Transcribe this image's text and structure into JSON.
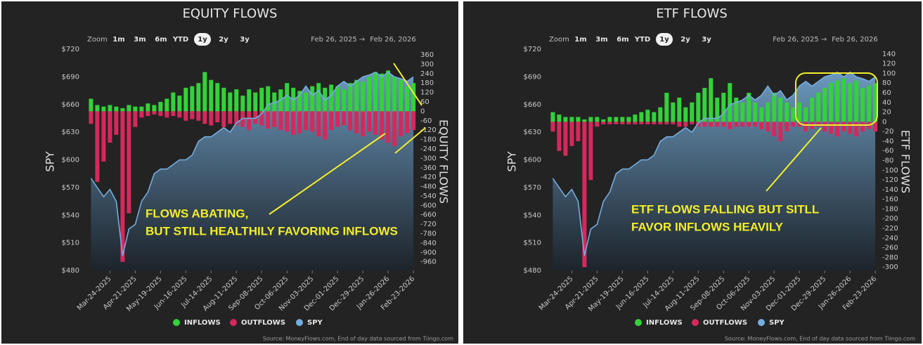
{
  "chart_data": [
    {
      "type": "combo",
      "title": "EQUITY FLOWS",
      "zoom_label": "Zoom",
      "zoom_options": [
        "1m",
        "3m",
        "6m",
        "YTD",
        "1y",
        "2y",
        "3y"
      ],
      "selected_zoom": "1y",
      "range_start": "Feb 26, 2025",
      "range_arrow": "→",
      "range_end": "Feb 26, 2026",
      "y_label": "SPY",
      "y2_label": "EQUITY FLOWS",
      "annotations": [
        "FLOWS ABATING,",
        "BUT STILL HEALTHILY FAVORING INFLOWS"
      ],
      "source": "Source: MoneyFlows.com, End of day data sourced from Tiingo.com",
      "xlim": [
        "Feb-26-2025",
        "Feb-26-2026"
      ],
      "xticks": [
        "Mar-24-2025",
        "Apr-21-2025",
        "May-19-2025",
        "Jun-16-2025",
        "Jul-14-2025",
        "Aug-11-2025",
        "Sep-08-2025",
        "Oct-06-2025",
        "Nov-03-2025",
        "Dec-01-2025",
        "Dec-29-2025",
        "Jan-26-2026",
        "Feb-23-2026"
      ],
      "x": [
        "Mar-03-2025",
        "Mar-10-2025",
        "Mar-17-2025",
        "Mar-24-2025",
        "Mar-31-2025",
        "Apr-07-2025",
        "Apr-14-2025",
        "Apr-21-2025",
        "Apr-28-2025",
        "May-05-2025",
        "May-12-2025",
        "May-19-2025",
        "May-26-2025",
        "Jun-02-2025",
        "Jun-09-2025",
        "Jun-16-2025",
        "Jun-23-2025",
        "Jun-30-2025",
        "Jul-07-2025",
        "Jul-14-2025",
        "Jul-21-2025",
        "Jul-28-2025",
        "Aug-04-2025",
        "Aug-11-2025",
        "Aug-18-2025",
        "Aug-25-2025",
        "Sep-01-2025",
        "Sep-08-2025",
        "Sep-15-2025",
        "Sep-22-2025",
        "Sep-29-2025",
        "Oct-06-2025",
        "Oct-13-2025",
        "Oct-20-2025",
        "Oct-27-2025",
        "Nov-03-2025",
        "Nov-10-2025",
        "Nov-17-2025",
        "Nov-24-2025",
        "Dec-01-2025",
        "Dec-08-2025",
        "Dec-15-2025",
        "Dec-22-2025",
        "Dec-29-2025",
        "Jan-05-2026",
        "Jan-12-2026",
        "Jan-19-2026",
        "Jan-26-2026",
        "Feb-02-2026",
        "Feb-09-2026",
        "Feb-16-2026",
        "Feb-23-2026"
      ],
      "ylim": [
        480,
        720
      ],
      "yticks": [
        {
          "value": 480,
          "label": "$480"
        },
        {
          "value": 510,
          "label": "$510"
        },
        {
          "value": 540,
          "label": "$540"
        },
        {
          "value": 570,
          "label": "$570"
        },
        {
          "value": 600,
          "label": "$600"
        },
        {
          "value": 630,
          "label": "$630"
        },
        {
          "value": 660,
          "label": "$660"
        },
        {
          "value": 690,
          "label": "$690"
        },
        {
          "value": 720,
          "label": "$720"
        }
      ],
      "y2lim": [
        -1015,
        396
      ],
      "y2ticks": [
        360,
        300,
        240,
        180,
        120,
        60,
        0,
        -60,
        -120,
        -180,
        -240,
        -300,
        -360,
        -420,
        -480,
        -540,
        -600,
        -660,
        -720,
        -780,
        -840,
        -900,
        -960
      ],
      "series": [
        {
          "name": "INFLOWS",
          "color": "#33d23a",
          "axis": "y2",
          "values": [
            80,
            40,
            30,
            40,
            30,
            20,
            40,
            30,
            30,
            50,
            40,
            60,
            80,
            120,
            100,
            150,
            160,
            180,
            250,
            200,
            180,
            150,
            120,
            140,
            100,
            140,
            120,
            150,
            160,
            120,
            140,
            180,
            150,
            130,
            120,
            160,
            180,
            150,
            170,
            160,
            140,
            180,
            200,
            190,
            220,
            250,
            240,
            260,
            220,
            200,
            160,
            180
          ]
        },
        {
          "name": "OUTFLOWS",
          "color": "#d6285c",
          "axis": "y2",
          "values": [
            -80,
            -450,
            -320,
            -200,
            -150,
            -960,
            -650,
            -100,
            -40,
            -30,
            -20,
            -30,
            -40,
            -30,
            -40,
            -60,
            -50,
            -60,
            -80,
            -90,
            -70,
            -100,
            -80,
            -90,
            -100,
            -120,
            -80,
            -90,
            -110,
            -100,
            -120,
            -130,
            -150,
            -140,
            -120,
            -130,
            -160,
            -180,
            -120,
            -100,
            -90,
            -120,
            -140,
            -160,
            -130,
            -150,
            -180,
            -200,
            -220,
            -160,
            -140,
            -120
          ]
        },
        {
          "name": "SPY",
          "color": "#74aee0",
          "values": [
            580,
            570,
            560,
            568,
            555,
            496,
            525,
            530,
            555,
            565,
            585,
            590,
            590,
            595,
            600,
            600,
            605,
            620,
            625,
            625,
            630,
            635,
            630,
            640,
            645,
            645,
            645,
            650,
            660,
            662,
            665,
            670,
            665,
            670,
            680,
            670,
            675,
            665,
            670,
            680,
            685,
            680,
            685,
            690,
            692,
            695,
            690,
            695,
            690,
            688,
            685,
            690
          ]
        }
      ]
    },
    {
      "type": "combo",
      "title": "ETF FLOWS",
      "zoom_label": "Zoom",
      "zoom_options": [
        "1m",
        "3m",
        "6m",
        "YTD",
        "1y",
        "2y",
        "3y"
      ],
      "selected_zoom": "1y",
      "range_start": "Feb 26, 2025",
      "range_arrow": "→",
      "range_end": "Feb 26, 2026",
      "y_label": "SPY",
      "y2_label": "ETF FLOWS",
      "annotations": [
        "ETF FLOWS FALLING BUT SITLL",
        "FAVOR INFLOWS HEAVILY"
      ],
      "source": "Source: MoneyFlows.com, End of day data sourced from Tiingo.com",
      "xlim": [
        "Feb-26-2025",
        "Feb-26-2026"
      ],
      "xticks": [
        "Mar-24-2025",
        "Apr-21-2025",
        "May-19-2025",
        "Jun-16-2025",
        "Jul-14-2025",
        "Aug-11-2025",
        "Sep-08-2025",
        "Oct-06-2025",
        "Nov-03-2025",
        "Dec-01-2025",
        "Dec-29-2025",
        "Jan-26-2026",
        "Feb-23-2026"
      ],
      "x": [
        "Mar-03-2025",
        "Mar-10-2025",
        "Mar-17-2025",
        "Mar-24-2025",
        "Mar-31-2025",
        "Apr-07-2025",
        "Apr-14-2025",
        "Apr-21-2025",
        "Apr-28-2025",
        "May-05-2025",
        "May-12-2025",
        "May-19-2025",
        "May-26-2025",
        "Jun-02-2025",
        "Jun-09-2025",
        "Jun-16-2025",
        "Jun-23-2025",
        "Jun-30-2025",
        "Jul-07-2025",
        "Jul-14-2025",
        "Jul-21-2025",
        "Jul-28-2025",
        "Aug-04-2025",
        "Aug-11-2025",
        "Aug-18-2025",
        "Aug-25-2025",
        "Sep-01-2025",
        "Sep-08-2025",
        "Sep-15-2025",
        "Sep-22-2025",
        "Sep-29-2025",
        "Oct-06-2025",
        "Oct-13-2025",
        "Oct-20-2025",
        "Oct-27-2025",
        "Nov-03-2025",
        "Nov-10-2025",
        "Nov-17-2025",
        "Nov-24-2025",
        "Dec-01-2025",
        "Dec-08-2025",
        "Dec-15-2025",
        "Dec-22-2025",
        "Dec-29-2025",
        "Jan-05-2026",
        "Jan-12-2026",
        "Jan-19-2026",
        "Jan-26-2026",
        "Feb-02-2026",
        "Feb-09-2026",
        "Feb-16-2026",
        "Feb-23-2026"
      ],
      "ylim": [
        480,
        720
      ],
      "yticks": [
        {
          "value": 480,
          "label": "$480"
        },
        {
          "value": 510,
          "label": "$510"
        },
        {
          "value": 540,
          "label": "$540"
        },
        {
          "value": 570,
          "label": "$570"
        },
        {
          "value": 600,
          "label": "$600"
        },
        {
          "value": 630,
          "label": "$630"
        },
        {
          "value": 660,
          "label": "$660"
        },
        {
          "value": 690,
          "label": "$690"
        },
        {
          "value": 720,
          "label": "$720"
        }
      ],
      "y2lim": [
        -307,
        150
      ],
      "y2ticks": [
        140,
        120,
        100,
        80,
        60,
        40,
        20,
        0,
        -20,
        -40,
        -60,
        -80,
        -100,
        -120,
        -140,
        -160,
        -180,
        -200,
        -220,
        -240,
        -260,
        -280,
        -300
      ],
      "series": [
        {
          "name": "INFLOWS",
          "color": "#33d23a",
          "axis": "y2",
          "values": [
            20,
            15,
            10,
            10,
            10,
            5,
            10,
            10,
            5,
            10,
            10,
            10,
            10,
            15,
            20,
            25,
            20,
            30,
            60,
            40,
            50,
            30,
            40,
            60,
            70,
            90,
            50,
            60,
            80,
            50,
            40,
            60,
            40,
            30,
            40,
            60,
            50,
            40,
            30,
            40,
            30,
            50,
            60,
            70,
            80,
            85,
            90,
            80,
            85,
            70,
            75,
            80
          ]
        },
        {
          "name": "OUTFLOWS",
          "color": "#d6285c",
          "axis": "y2",
          "values": [
            -20,
            -60,
            -70,
            -50,
            -40,
            -300,
            -120,
            -10,
            -5,
            -5,
            -5,
            -5,
            -5,
            -5,
            -5,
            -5,
            -5,
            -5,
            -5,
            -5,
            -10,
            -10,
            -5,
            -10,
            -10,
            -10,
            -10,
            -10,
            -15,
            -10,
            -10,
            -10,
            -10,
            -15,
            -20,
            -30,
            -40,
            -20,
            -10,
            -10,
            -20,
            -15,
            -10,
            -20,
            -25,
            -30,
            -20,
            -25,
            -30,
            -20,
            -15,
            -20
          ]
        },
        {
          "name": "SPY",
          "color": "#74aee0",
          "values": [
            580,
            570,
            560,
            568,
            555,
            496,
            525,
            530,
            555,
            565,
            585,
            590,
            590,
            595,
            600,
            600,
            605,
            620,
            625,
            625,
            630,
            635,
            630,
            640,
            645,
            645,
            645,
            650,
            660,
            662,
            665,
            670,
            665,
            670,
            680,
            670,
            675,
            665,
            670,
            680,
            685,
            680,
            685,
            690,
            692,
            695,
            690,
            695,
            690,
            688,
            685,
            690
          ]
        }
      ]
    }
  ]
}
